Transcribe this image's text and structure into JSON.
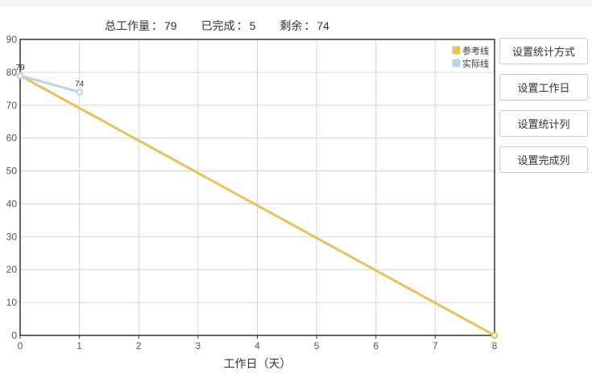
{
  "summary": {
    "total_label": "总工作量",
    "total_value": "79",
    "done_label": "已完成",
    "done_value": "5",
    "remain_label": "剩余",
    "remain_value": "74",
    "sep": "："
  },
  "buttons": {
    "stat_method": "设置统计方式",
    "workday": "设置工作日",
    "stat_column": "设置统计列",
    "done_column": "设置完成列"
  },
  "chart_data": {
    "type": "line",
    "xlabel": "工作日（天）",
    "ylabel": "",
    "xlim": [
      0,
      8
    ],
    "ylim": [
      0,
      90
    ],
    "x_ticks": [
      0,
      1,
      2,
      3,
      4,
      5,
      6,
      7,
      8
    ],
    "y_ticks": [
      0,
      10,
      20,
      30,
      40,
      50,
      60,
      70,
      80,
      90
    ],
    "grid": true,
    "legend_position": "top-right",
    "series": [
      {
        "name": "参考线",
        "color": "#e8c15a",
        "points": [
          [
            0,
            79
          ],
          [
            8,
            0
          ]
        ],
        "labels": []
      },
      {
        "name": "实际线",
        "color": "#b8d4ea",
        "points": [
          [
            0,
            79
          ],
          [
            1,
            74
          ]
        ],
        "labels": [
          "79",
          "74"
        ]
      }
    ]
  }
}
